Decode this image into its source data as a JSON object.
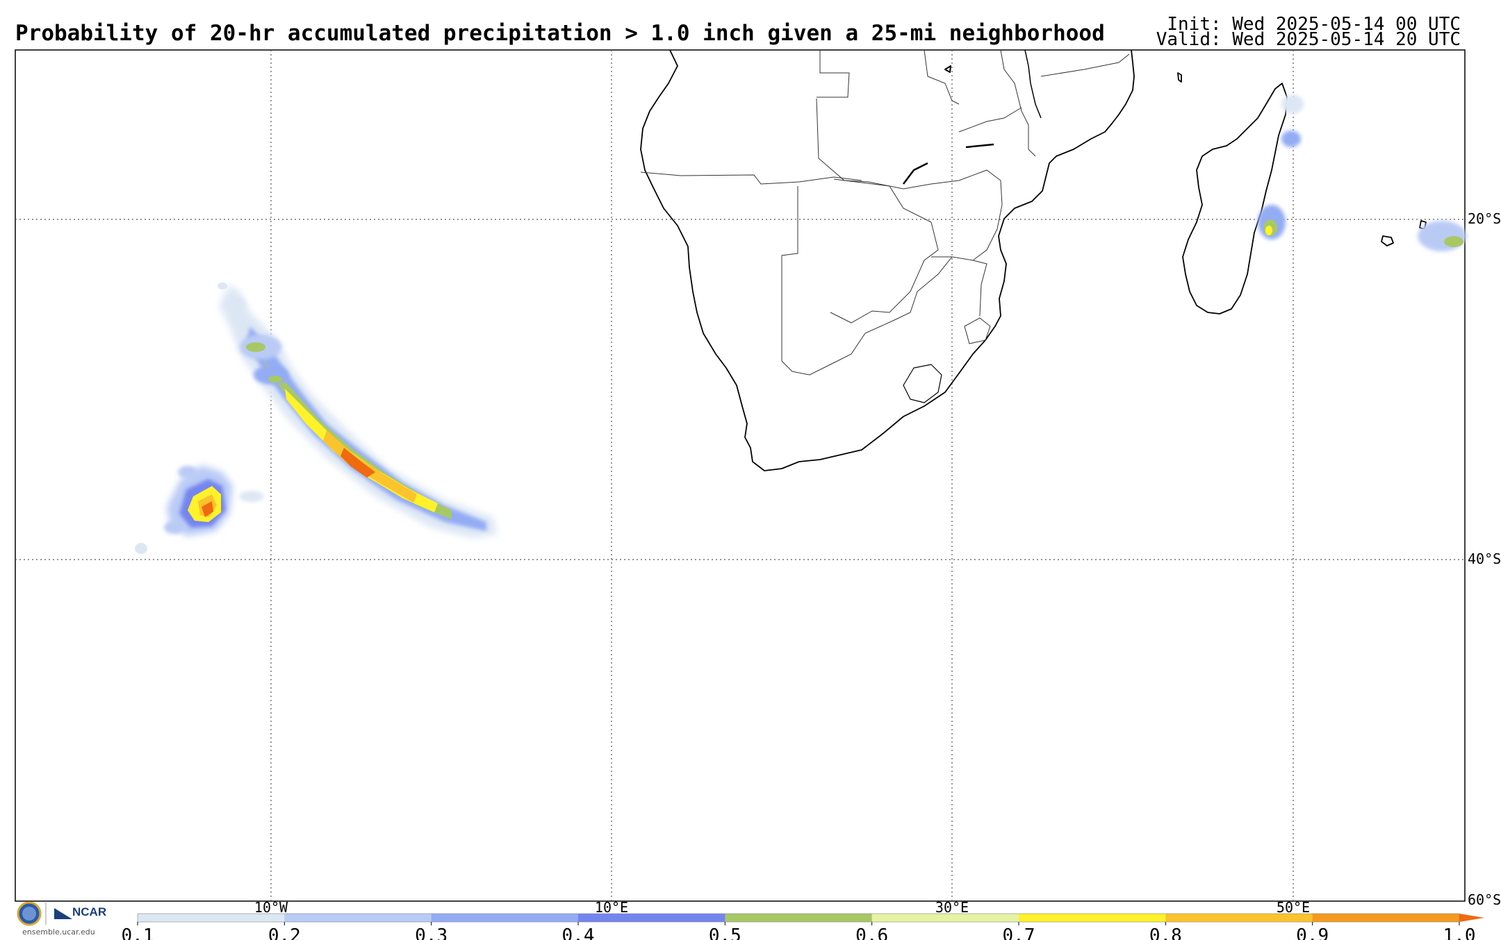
{
  "header": {
    "title": "Probability of 20-hr accumulated precipitation > 1.0 inch given a 25-mi neighborhood",
    "init": "Init: Wed 2025-05-14 00 UTC",
    "valid": "Valid: Wed 2025-05-14 20 UTC"
  },
  "map": {
    "lon_labels": [
      "10°W",
      "10°E",
      "30°E",
      "50°E"
    ],
    "lat_labels": [
      "20°S",
      "40°S",
      "60°S"
    ]
  },
  "colorbar": {
    "ticks": [
      "0.1",
      "0.2",
      "0.3",
      "0.4",
      "0.5",
      "0.6",
      "0.7",
      "0.8",
      "0.9",
      "1.0"
    ],
    "colors": [
      "#dde7f4",
      "#b9cbf5",
      "#93acf4",
      "#7585ef",
      "#a8c866",
      "#e6f3a4",
      "#fff22a",
      "#fbc32d",
      "#f59a1f"
    ],
    "extend_color": "#f06a10"
  },
  "logo": {
    "org": "NCAR",
    "url": "ensemble.ucar.edu",
    "seal": "NSF"
  }
}
